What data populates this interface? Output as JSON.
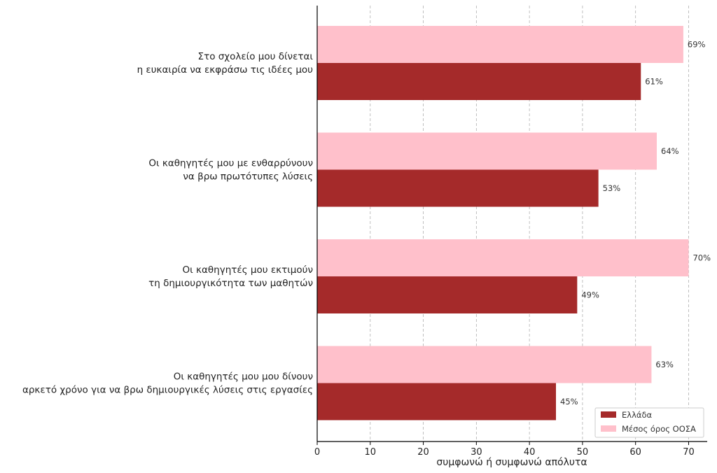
{
  "chart_data": {
    "type": "bar",
    "orientation": "horizontal",
    "categories": [
      [
        "Στο σχολείο μου δίνεται",
        "η ευκαιρία να εκφράσω τις ιδέες μου"
      ],
      [
        "Οι καθηγητές μου με ενθαρρύνουν",
        "να βρω πρωτότυπες λύσεις"
      ],
      [
        "Οι καθηγητές μου εκτιμούν",
        "τη δημιουργικότητα των μαθητών"
      ],
      [
        "Οι καθηγητές μου μου δίνουν",
        "αρκετό χρόνο για να βρω δημιουργικές λύσεις στις εργασίες"
      ]
    ],
    "series": [
      {
        "name": "Ελλάδα",
        "values": [
          61,
          53,
          49,
          45
        ],
        "color": "#a52a2a"
      },
      {
        "name": "Μέσος όρος ΟΟΣΑ",
        "values": [
          69,
          64,
          70,
          63
        ],
        "color": "#ffc0cb"
      }
    ],
    "value_suffix": "%",
    "xlabel": "συμφωνώ ή συμφωνώ απόλυτα",
    "ylabel": "",
    "xlim": [
      0,
      73.5
    ],
    "xticks": [
      0,
      10,
      20,
      30,
      40,
      50,
      60,
      70
    ],
    "grid": "x, dashed",
    "legend_position": "lower-right"
  }
}
